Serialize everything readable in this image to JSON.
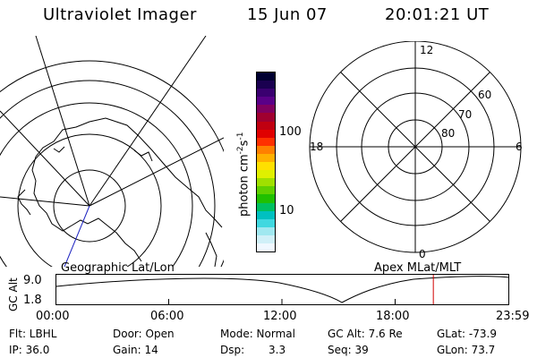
{
  "header": {
    "title": "Ultraviolet Imager",
    "date": "15 Jun 07",
    "time": "20:01:21 UT"
  },
  "left_panel": {
    "caption": "Geographic Lat/Lon"
  },
  "colorbar": {
    "label": "photon cm",
    "exp1": "-2",
    "mid": "s",
    "exp2": "-1",
    "ticks": [
      "100",
      "10"
    ],
    "colors": [
      "#000030",
      "#1a0050",
      "#3a0070",
      "#5a0088",
      "#800060",
      "#a00030",
      "#c00010",
      "#e00000",
      "#ff3000",
      "#ff8000",
      "#ffb000",
      "#ffe000",
      "#e0f000",
      "#a0e000",
      "#60d000",
      "#20c000",
      "#00c060",
      "#00c0c0",
      "#40d8e0",
      "#a0e8f0",
      "#d0f0f8",
      "#f0f8ff"
    ]
  },
  "right_panel": {
    "caption": "Apex  MLat/MLT",
    "mlt_labels": {
      "top": "12",
      "left": "18",
      "right": "6",
      "bottom": "0"
    },
    "lat_labels": [
      "60",
      "70",
      "80"
    ]
  },
  "timeline": {
    "ylabel": "GC Alt",
    "ymax": "9.0",
    "ymin": "1.8",
    "ticks": [
      "00:00",
      "06:00",
      "12:00",
      "18:00",
      "23:59"
    ],
    "current_fraction": 0.834
  },
  "status": {
    "filter": "Flt: LBHL",
    "ip": "IP: 36.0",
    "door": "Door: Open",
    "gain": "Gain: 14",
    "mode": "Mode: Normal",
    "dsp_label": "Dsp:",
    "dsp_value": "3.3",
    "gcalt": "GC Alt: 7.6 Re",
    "seq": "Seq: 39",
    "glat": "GLat: -73.9",
    "glon": "GLon:  73.7"
  }
}
